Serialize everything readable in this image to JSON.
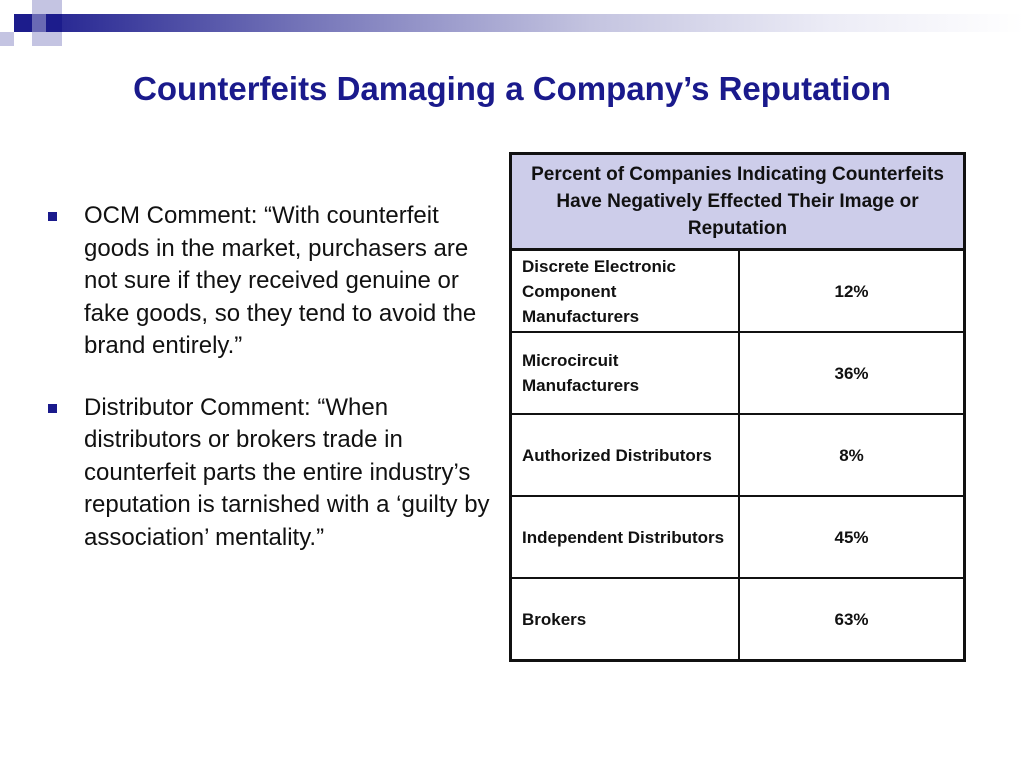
{
  "title": "Counterfeits Damaging a Company’s Reputation",
  "bullets": [
    "OCM Comment: “With counterfeit goods in the market, purchasers are not sure if they received genuine or fake goods, so they tend to avoid the brand entirely.”",
    "Distributor Comment: “When distributors or brokers trade in counterfeit parts the entire industry’s reputation is tarnished with a ‘guilty by association’ mentality.”"
  ],
  "table": {
    "header": "Percent of Companies Indicating Counterfeits Have Negatively Effected Their Image or Reputation",
    "rows": [
      {
        "category": "Discrete Electronic Component Manufacturers",
        "value": "12%"
      },
      {
        "category": "Microcircuit Manufacturers",
        "value": "36%"
      },
      {
        "category": "Authorized Distributors",
        "value": "8%"
      },
      {
        "category": "Independent Distributors",
        "value": "45%"
      },
      {
        "category": "Brokers",
        "value": "63%"
      }
    ]
  },
  "colors": {
    "title": "#1a1a8c",
    "table_header_bg": "#cdcdea",
    "accent": "#1c1c8c"
  }
}
